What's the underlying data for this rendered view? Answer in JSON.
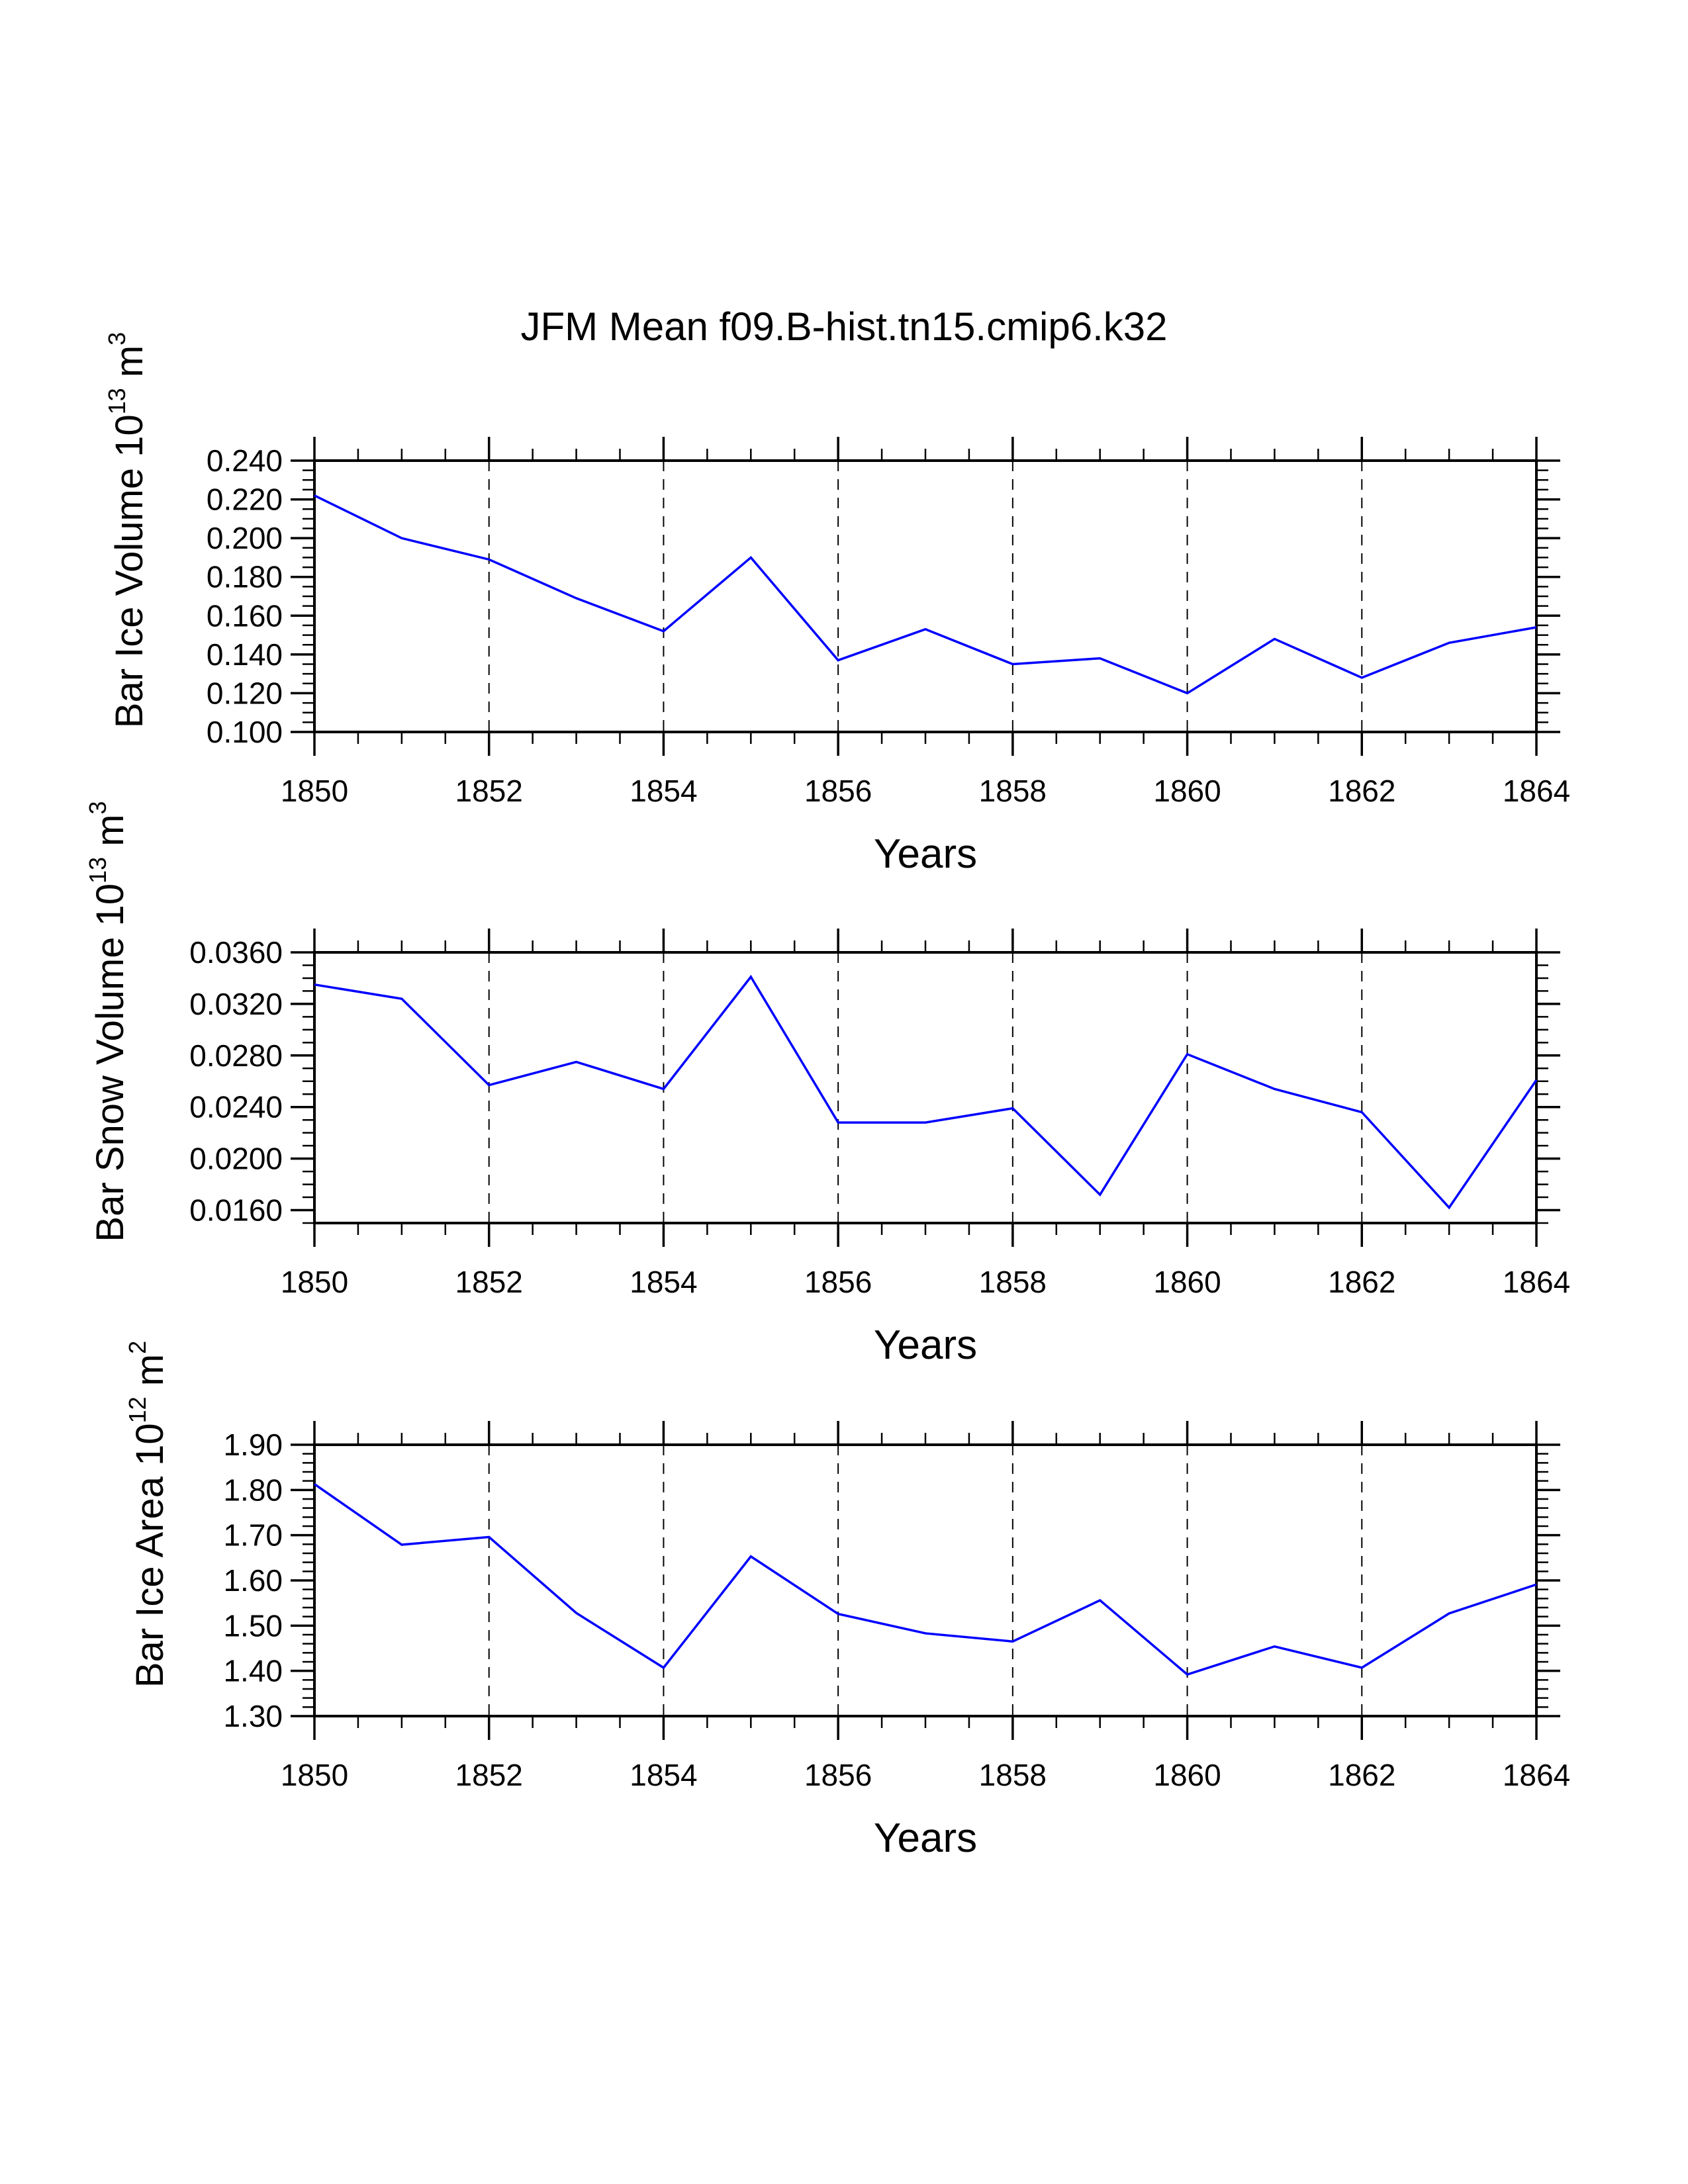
{
  "title": "JFM Mean f09.B-hist.tn15.cmip6.k32",
  "colors": {
    "line": "#0000ff",
    "axis": "#000000"
  },
  "chart_data": [
    {
      "type": "line",
      "ylabel": {
        "main": "Bar Ice Volume 10",
        "sup": "13",
        "unit": " m",
        "unit_sup": "3"
      },
      "xlabel": "Years",
      "xlim": [
        1850,
        1864
      ],
      "ylim": [
        0.1,
        0.24
      ],
      "yticks": [
        "0.100",
        "0.120",
        "0.140",
        "0.160",
        "0.180",
        "0.200",
        "0.220",
        "0.240"
      ],
      "yminor_step": 0.005,
      "xticks": [
        "1850",
        "1852",
        "1854",
        "1856",
        "1858",
        "1860",
        "1862",
        "1864"
      ],
      "grid": "dashed vertical at major x ticks",
      "x": [
        1850,
        1851,
        1852,
        1853,
        1854,
        1855,
        1856,
        1857,
        1858,
        1859,
        1860,
        1861,
        1862,
        1863,
        1864
      ],
      "values": [
        0.222,
        0.2,
        0.189,
        0.169,
        0.152,
        0.19,
        0.137,
        0.153,
        0.135,
        0.138,
        0.12,
        0.148,
        0.128,
        0.146,
        0.154
      ]
    },
    {
      "type": "line",
      "ylabel": {
        "main": "Bar Snow Volume 10",
        "sup": "13",
        "unit": " m",
        "unit_sup": "3"
      },
      "xlabel": "Years",
      "xlim": [
        1850,
        1864
      ],
      "ylim": [
        0.015,
        0.036
      ],
      "yticks": [
        "0.0160",
        "0.0200",
        "0.0240",
        "0.0280",
        "0.0320",
        "0.0360"
      ],
      "yminor_step": 0.001,
      "xticks": [
        "1850",
        "1852",
        "1854",
        "1856",
        "1858",
        "1860",
        "1862",
        "1864"
      ],
      "grid": "dashed vertical at major x ticks",
      "x": [
        1850,
        1851,
        1852,
        1853,
        1854,
        1855,
        1856,
        1857,
        1858,
        1859,
        1860,
        1861,
        1862,
        1863,
        1864
      ],
      "values": [
        0.0335,
        0.0324,
        0.0257,
        0.0275,
        0.0254,
        0.0341,
        0.0228,
        0.0228,
        0.0239,
        0.0172,
        0.0281,
        0.0254,
        0.0236,
        0.0162,
        0.0261
      ]
    },
    {
      "type": "line",
      "ylabel": {
        "main": "Bar Ice Area 10",
        "sup": "12",
        "unit": " m",
        "unit_sup": "2"
      },
      "xlabel": "Years",
      "xlim": [
        1850,
        1864
      ],
      "ylim": [
        1.3,
        1.9
      ],
      "yticks": [
        "1.30",
        "1.40",
        "1.50",
        "1.60",
        "1.70",
        "1.80",
        "1.90"
      ],
      "yminor_step": 0.02,
      "xticks": [
        "1850",
        "1852",
        "1854",
        "1856",
        "1858",
        "1860",
        "1862",
        "1864"
      ],
      "grid": "dashed vertical at major x ticks",
      "x": [
        1850,
        1851,
        1852,
        1853,
        1854,
        1855,
        1856,
        1857,
        1858,
        1859,
        1860,
        1861,
        1862,
        1863,
        1864
      ],
      "values": [
        1.813,
        1.679,
        1.696,
        1.528,
        1.407,
        1.653,
        1.526,
        1.483,
        1.465,
        1.556,
        1.392,
        1.454,
        1.407,
        1.527,
        1.591
      ]
    }
  ]
}
